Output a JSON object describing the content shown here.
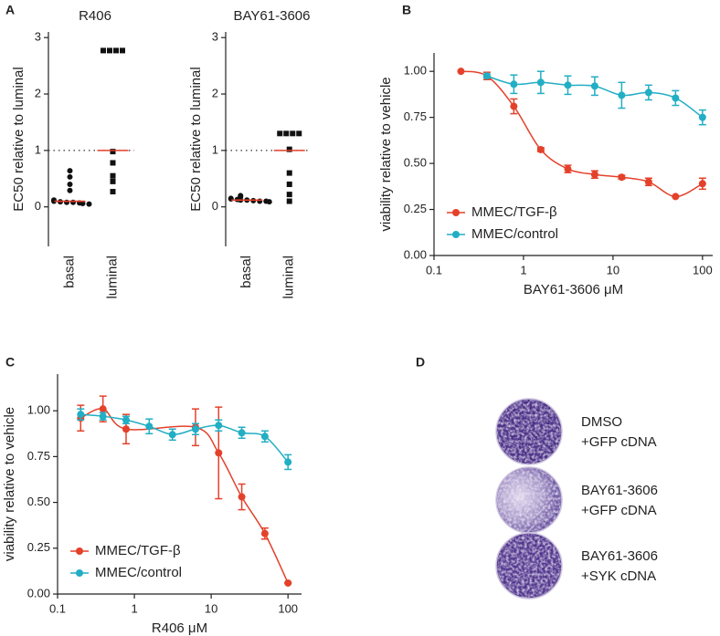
{
  "panels": [
    "A",
    "B",
    "C",
    "D"
  ],
  "chart_data": [
    {
      "type": "strip",
      "title": "R406",
      "y_label": "EC50 relative to luminal",
      "categories": [
        "basal",
        "luminal"
      ],
      "markers": [
        "circle",
        "square"
      ],
      "color": "#111111",
      "median_color": "#e4412a",
      "groups": [
        {
          "values": [
            0.64,
            0.53,
            0.4,
            0.29,
            0.12,
            0.1,
            0.09,
            0.08,
            0.08,
            0.07,
            0.06,
            0.05
          ],
          "median": 0.1
        },
        {
          "values": [
            2.77,
            2.77,
            2.77,
            2.77,
            0.98,
            0.78,
            0.55,
            0.45,
            0.27
          ],
          "median": 1
        }
      ],
      "reference_line": 1,
      "ylim": [
        -0.7,
        3.1
      ],
      "yticks": [
        0,
        1,
        2,
        3
      ]
    },
    {
      "type": "strip",
      "title": "BAY61-3606",
      "y_label": "EC50 relative to luminal",
      "categories": [
        "basal",
        "luminal"
      ],
      "markers": [
        "circle",
        "square"
      ],
      "color": "#111111",
      "median_color": "#e4412a",
      "groups": [
        {
          "values": [
            0.2,
            0.18,
            0.15,
            0.14,
            0.13,
            0.12,
            0.12,
            0.11,
            0.1,
            0.1,
            0.09
          ],
          "median": 0.12
        },
        {
          "values": [
            1.3,
            1.3,
            1.3,
            1.3,
            1.02,
            0.6,
            0.4,
            0.22,
            0.1
          ],
          "median": 1
        }
      ],
      "reference_line": 1,
      "ylim": [
        -0.7,
        3.1
      ],
      "yticks": [
        0,
        1,
        2,
        3
      ]
    },
    {
      "type": "dose-response",
      "x_label": "BAY61-3606 μM",
      "y_label": "viability relative to vehicle",
      "xscale": "log",
      "xlim": [
        0.1,
        130
      ],
      "xticks": [
        0.1,
        1,
        10,
        100
      ],
      "ylim": [
        0,
        1.1
      ],
      "yticks": [
        {
          "value": 0,
          "label": "0.00"
        },
        {
          "value": 0.25,
          "label": "0.25"
        },
        {
          "value": 0.5,
          "label": "0.50"
        },
        {
          "value": 0.75,
          "label": "0.75"
        },
        {
          "value": 1,
          "label": "1.00"
        }
      ],
      "legend": "lower left",
      "series": [
        {
          "name": "MMEC/TGF-β",
          "color": "#e4412a",
          "x": [
            0.2,
            0.39,
            0.78,
            1.56,
            3.13,
            6.25,
            12.5,
            25,
            50,
            100
          ],
          "values": [
            1.0,
            0.975,
            0.81,
            0.575,
            0.47,
            0.44,
            0.425,
            0.4,
            0.32,
            0.39
          ],
          "errors": [
            0,
            0.02,
            0.04,
            0.01,
            0.02,
            0.02,
            0.01,
            0.02,
            0,
            0.03
          ]
        },
        {
          "name": "MMEC/control",
          "color": "#22aec4",
          "x": [
            0.39,
            0.78,
            1.56,
            3.13,
            6.25,
            12.5,
            25,
            50,
            100
          ],
          "values": [
            0.975,
            0.93,
            0.94,
            0.925,
            0.92,
            0.87,
            0.885,
            0.855,
            0.75
          ],
          "errors": [
            0.01,
            0.05,
            0.06,
            0.05,
            0.05,
            0.07,
            0.04,
            0.04,
            0.04
          ]
        }
      ]
    },
    {
      "type": "dose-response",
      "x_label": "R406 μM",
      "y_label": "viability relative to vehicle",
      "xscale": "log",
      "xlim": [
        0.1,
        150
      ],
      "xticks": [
        0.1,
        1,
        10,
        100
      ],
      "ylim": [
        0,
        1.2
      ],
      "yticks": [
        {
          "value": 0,
          "label": "0.00"
        },
        {
          "value": 0.25,
          "label": "0.25"
        },
        {
          "value": 0.5,
          "label": "0.50"
        },
        {
          "value": 0.75,
          "label": "0.75"
        },
        {
          "value": 1,
          "label": "1.00"
        }
      ],
      "legend": "lower left",
      "series": [
        {
          "name": "MMEC/TGF-β",
          "color": "#e4412a",
          "x": [
            0.2,
            0.39,
            0.78,
            6.25,
            12.5,
            25,
            50,
            100
          ],
          "values": [
            0.96,
            1.01,
            0.9,
            0.91,
            0.77,
            0.53,
            0.33,
            0.06
          ],
          "errors": [
            0.07,
            0.07,
            0.08,
            0.1,
            0.25,
            0.07,
            0.03,
            0
          ]
        },
        {
          "name": "MMEC/control",
          "color": "#22aec4",
          "x": [
            0.2,
            0.39,
            0.78,
            1.56,
            3.13,
            6.25,
            12.5,
            25,
            50,
            100
          ],
          "values": [
            0.98,
            0.97,
            0.95,
            0.915,
            0.87,
            0.9,
            0.92,
            0.88,
            0.86,
            0.72
          ],
          "errors": [
            0.03,
            0.02,
            0.02,
            0.04,
            0.03,
            0.03,
            0.03,
            0.03,
            0.03,
            0.04
          ]
        }
      ]
    }
  ],
  "panel_d": {
    "wells": [
      {
        "lines": [
          "DMSO",
          "+GFP cDNA"
        ]
      },
      {
        "lines": [
          "BAY61-3606",
          "+GFP cDNA"
        ]
      },
      {
        "lines": [
          "BAY61-3606",
          "+SYK cDNA"
        ]
      }
    ]
  }
}
